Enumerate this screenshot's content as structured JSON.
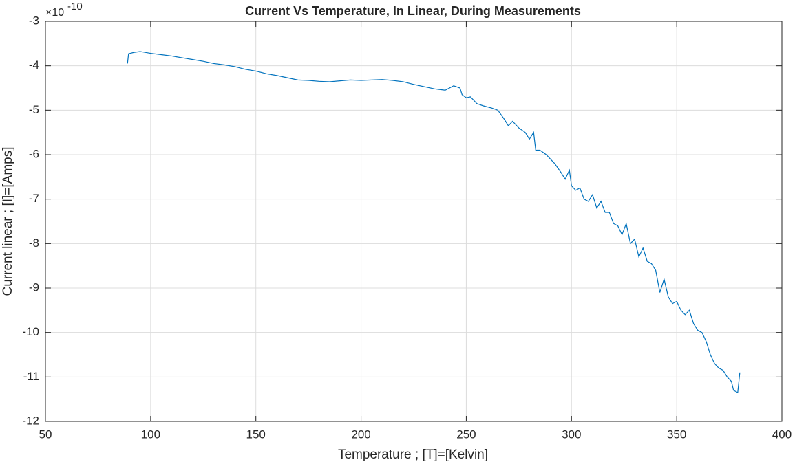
{
  "chart_data": {
    "type": "line",
    "title": "Current Vs Temperature, In Linear, During Measurements",
    "xlabel": "Temperature ; [T]=[Kelvin]",
    "ylabel": "Current linear ; [I]=[Amps]",
    "y_multiplier": "×10",
    "y_multiplier_exponent": "-10",
    "x": [
      89,
      89.5,
      92,
      95,
      100,
      105,
      110,
      115,
      120,
      125,
      130,
      135,
      140,
      145,
      150,
      155,
      160,
      165,
      170,
      175,
      180,
      185,
      190,
      195,
      200,
      205,
      210,
      215,
      220,
      225,
      230,
      235,
      240,
      244,
      247,
      248,
      250,
      252,
      255,
      258,
      262,
      265,
      268,
      270,
      272,
      275,
      278,
      280,
      282,
      283,
      285,
      288,
      290,
      292,
      295,
      297,
      299,
      300,
      302,
      304,
      306,
      308,
      310,
      312,
      314,
      316,
      318,
      320,
      322,
      324,
      326,
      328,
      330,
      332,
      334,
      336,
      338,
      340,
      342,
      344,
      346,
      348,
      350,
      352,
      354,
      356,
      358,
      360,
      362,
      364,
      366,
      368,
      370,
      372,
      374,
      376,
      377,
      379,
      380
    ],
    "series": [
      {
        "name": "Current",
        "color": "#0072bd",
        "values": [
          -3.95,
          -3.73,
          -3.7,
          -3.68,
          -3.72,
          -3.75,
          -3.78,
          -3.82,
          -3.86,
          -3.9,
          -3.95,
          -3.98,
          -4.02,
          -4.08,
          -4.12,
          -4.18,
          -4.22,
          -4.27,
          -4.32,
          -4.33,
          -4.35,
          -4.36,
          -4.34,
          -4.32,
          -4.33,
          -4.32,
          -4.31,
          -4.33,
          -4.36,
          -4.42,
          -4.47,
          -4.52,
          -4.55,
          -4.45,
          -4.5,
          -4.65,
          -4.72,
          -4.7,
          -4.85,
          -4.9,
          -4.95,
          -5.0,
          -5.2,
          -5.35,
          -5.25,
          -5.4,
          -5.5,
          -5.65,
          -5.5,
          -5.9,
          -5.9,
          -6.0,
          -6.1,
          -6.2,
          -6.4,
          -6.55,
          -6.35,
          -6.7,
          -6.8,
          -6.75,
          -7.0,
          -7.05,
          -6.9,
          -7.2,
          -7.05,
          -7.3,
          -7.3,
          -7.55,
          -7.6,
          -7.8,
          -7.55,
          -8.0,
          -7.9,
          -8.3,
          -8.1,
          -8.4,
          -8.45,
          -8.6,
          -9.1,
          -8.8,
          -9.2,
          -9.35,
          -9.3,
          -9.5,
          -9.6,
          -9.5,
          -9.8,
          -9.95,
          -10.0,
          -10.2,
          -10.5,
          -10.7,
          -10.8,
          -10.85,
          -11.0,
          -11.1,
          -11.3,
          -11.35,
          -10.9
        ]
      }
    ],
    "xlim": [
      50,
      400
    ],
    "xticks": [
      50,
      100,
      150,
      200,
      250,
      300,
      350,
      400
    ],
    "ylim": [
      -12,
      -3
    ],
    "yticks": [
      -12,
      -11,
      -10,
      -9,
      -8,
      -7,
      -6,
      -5,
      -4,
      -3
    ],
    "grid": true
  }
}
